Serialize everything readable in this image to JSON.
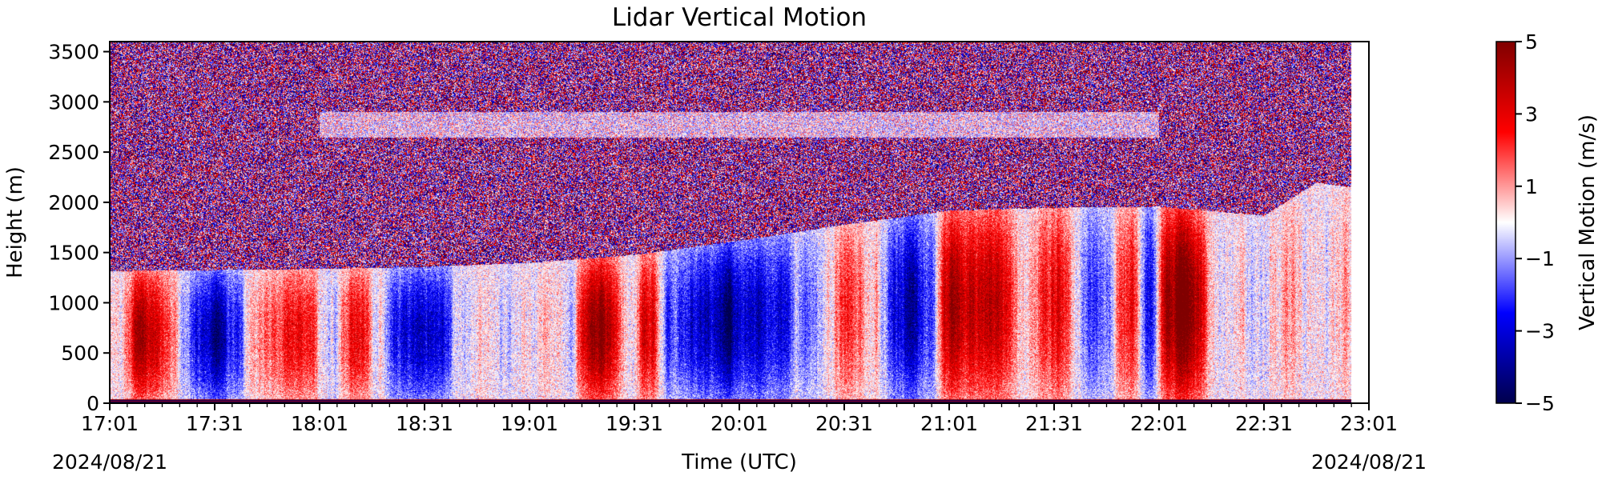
{
  "chart_data": {
    "type": "heatmap",
    "title": "Lidar Vertical Motion",
    "xlabel": "Time (UTC)",
    "ylabel": "Height (m)",
    "x_start_date": "2024/08/21",
    "x_end_date": "2024/08/21",
    "x_tick_labels": [
      "17:01",
      "17:31",
      "18:01",
      "18:31",
      "19:01",
      "19:31",
      "20:01",
      "20:31",
      "21:01",
      "21:31",
      "22:01",
      "22:31",
      "23:01"
    ],
    "xlim": [
      "17:01",
      "23:01"
    ],
    "y_ticks": [
      0,
      500,
      1000,
      1500,
      2000,
      2500,
      3000,
      3500
    ],
    "ylim": [
      0,
      3600
    ],
    "colorbar": {
      "label": "Vertical Motion (m/s)",
      "colormap": "seismic",
      "min": -5,
      "max": 5,
      "ticks": [
        5,
        3,
        1,
        -1,
        -3,
        -5
      ],
      "tick_labels": [
        "5",
        "3",
        "1",
        "−1",
        "−3",
        "−5"
      ],
      "colors": [
        "#00004c",
        "#0000ff",
        "#ffffff",
        "#ff0000",
        "#800000"
      ]
    },
    "time_minutes": [
      0,
      30,
      60,
      90,
      120,
      150,
      180,
      210,
      240,
      270,
      300,
      330,
      345,
      355
    ],
    "boundary_layer_top_m": [
      1320,
      1330,
      1340,
      1360,
      1400,
      1480,
      1620,
      1780,
      1920,
      1950,
      1960,
      1870,
      2200,
      2150
    ],
    "updraft_episodes": [
      {
        "start": "17:06",
        "end": "17:18",
        "peak_m_s": 3
      },
      {
        "start": "17:47",
        "end": "17:58",
        "peak_m_s": 3
      },
      {
        "start": "18:08",
        "end": "18:14",
        "peak_m_s": 2.5
      },
      {
        "start": "19:16",
        "end": "19:26",
        "peak_m_s": 3.5
      },
      {
        "start": "19:33",
        "end": "19:38",
        "peak_m_s": 3
      },
      {
        "start": "20:30",
        "end": "20:36",
        "peak_m_s": 2.5
      },
      {
        "start": "21:00",
        "end": "21:17",
        "peak_m_s": 4
      },
      {
        "start": "21:26",
        "end": "21:36",
        "peak_m_s": 3.5
      },
      {
        "start": "21:50",
        "end": "21:56",
        "peak_m_s": 2.5
      },
      {
        "start": "22:01",
        "end": "22:14",
        "peak_m_s": 4.5
      }
    ],
    "downdraft_episodes": [
      {
        "start": "17:22",
        "end": "17:38",
        "peak_m_s": -2.5
      },
      {
        "start": "18:22",
        "end": "18:40",
        "peak_m_s": -2.5
      },
      {
        "start": "19:40",
        "end": "20:25",
        "peak_m_s": -3
      },
      {
        "start": "20:45",
        "end": "20:55",
        "peak_m_s": -2.5
      },
      {
        "start": "21:40",
        "end": "21:46",
        "peak_m_s": -2
      },
      {
        "start": "21:56",
        "end": "22:00",
        "peak_m_s": -3
      }
    ],
    "aloft_noise": "random ±5 m/s above boundary layer top",
    "grid": false,
    "legend": "colorbar-right"
  }
}
